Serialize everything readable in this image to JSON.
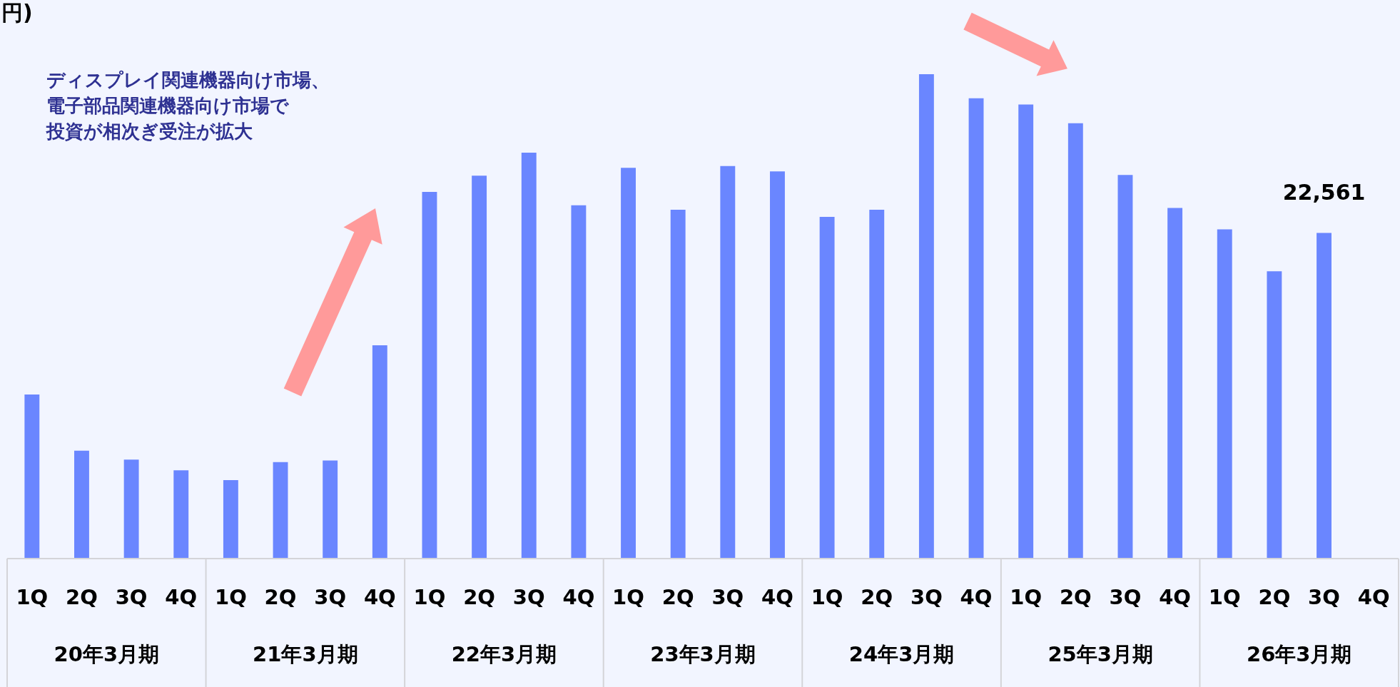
{
  "chart_data": {
    "type": "bar",
    "title": "円)",
    "categories": [
      "1Q",
      "2Q",
      "3Q",
      "4Q",
      "1Q",
      "2Q",
      "3Q",
      "4Q",
      "1Q",
      "2Q",
      "3Q",
      "4Q",
      "1Q",
      "2Q",
      "3Q",
      "4Q",
      "1Q",
      "2Q",
      "3Q",
      "4Q",
      "1Q",
      "2Q",
      "3Q",
      "4Q",
      "1Q",
      "2Q",
      "3Q",
      "4Q"
    ],
    "values": [
      11370,
      7480,
      6860,
      6120,
      5440,
      6680,
      6800,
      14770,
      25400,
      26520,
      28120,
      24480,
      27070,
      24170,
      27190,
      26820,
      23670,
      24170,
      33560,
      31890,
      31460,
      30160,
      26580,
      24290,
      22810,
      19900,
      22561,
      null
    ],
    "value_labels": [
      null,
      null,
      null,
      null,
      null,
      null,
      null,
      null,
      null,
      null,
      null,
      null,
      null,
      null,
      null,
      null,
      null,
      null,
      null,
      null,
      null,
      null,
      null,
      null,
      null,
      null,
      "22,561",
      null
    ],
    "color": "#6a86ff",
    "annotations": [
      "ディスプレイ関連機器向け市場、",
      "電子部品関連機器向け市場で",
      "投資が相次ぎ受注が拡大",
      "20年3月期",
      "21年3月期",
      "22年3月期",
      "23年3月期",
      "24年3月期",
      "25年3月期",
      "26年3月期"
    ],
    "grid": false
  }
}
